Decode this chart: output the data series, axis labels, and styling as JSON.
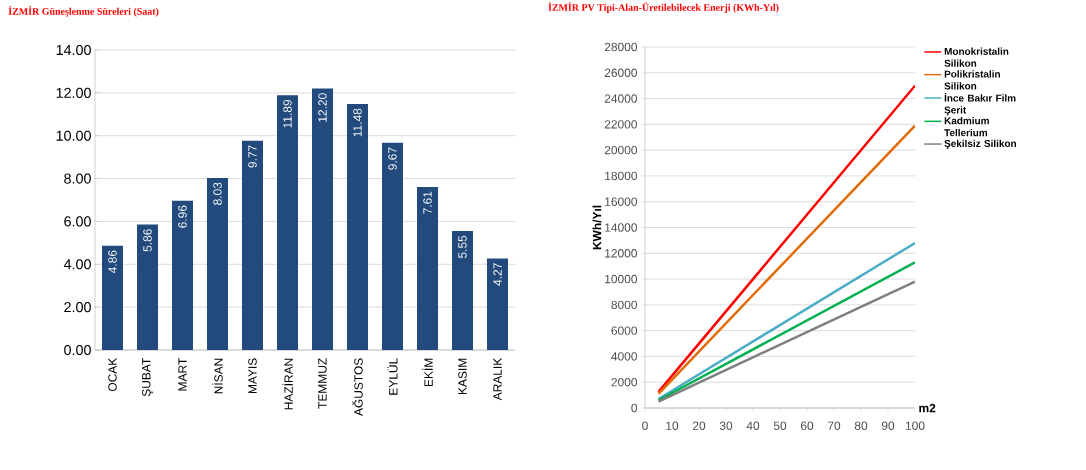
{
  "chart_data": [
    {
      "type": "bar",
      "title": "İZMİR Güneşlenme Süreleri (Saat)",
      "categories": [
        "OCAK",
        "ŞUBAT",
        "MART",
        "NİSAN",
        "MAYIS",
        "HAZİRAN",
        "TEMMUZ",
        "AĞUSTOS",
        "EYLÜL",
        "EKİM",
        "KASIM",
        "ARALIK"
      ],
      "values": [
        4.86,
        5.86,
        6.96,
        8.03,
        9.77,
        11.89,
        12.2,
        11.48,
        9.67,
        7.61,
        5.55,
        4.27
      ],
      "value_labels": [
        "4.86",
        "5.86",
        "6.96",
        "8.03",
        "9.77",
        "11.89",
        "12.20",
        "11.48",
        "9.67",
        "7.61",
        "5.55",
        "4.27"
      ],
      "color": "#234a7c",
      "ylim": [
        0,
        14
      ],
      "yticks": [
        {
          "value": 0,
          "label": "0.00"
        },
        {
          "value": 2,
          "label": "2.00"
        },
        {
          "value": 4,
          "label": "4.00"
        },
        {
          "value": 6,
          "label": "6.00"
        },
        {
          "value": 8,
          "label": "8.00"
        },
        {
          "value": 10,
          "label": "10.00"
        },
        {
          "value": 12,
          "label": "12.00"
        },
        {
          "value": 14,
          "label": "14.00"
        }
      ],
      "grid": "y"
    },
    {
      "type": "line",
      "title": "İZMİR PV Tipi-Alan-Üretilebilecek Enerji (KWh-Yıl)",
      "xlabel": "m2",
      "ylabel": "KWh/Yıl",
      "x": [
        5,
        100
      ],
      "series": [
        {
          "name": "Monokristalin Silikon",
          "color": "#ff0000",
          "values": [
            1250,
            25000
          ]
        },
        {
          "name": "Polikristalin Silikon",
          "color": "#e36c09",
          "values": [
            1100,
            21900
          ]
        },
        {
          "name": "İnce Bakır Film Şerit",
          "color": "#4bacc6",
          "values": [
            700,
            12800
          ]
        },
        {
          "name": "Kadmium Tellerium",
          "color": "#00b050",
          "values": [
            600,
            11300
          ]
        },
        {
          "name": "Şekilsiz Silikon",
          "color": "#808080",
          "values": [
            500,
            9800
          ]
        }
      ],
      "xlim": [
        0,
        100
      ],
      "xticks": [
        0,
        10,
        20,
        30,
        40,
        50,
        60,
        70,
        80,
        90,
        100
      ],
      "ylim": [
        0,
        28000
      ],
      "yticks": [
        0,
        2000,
        4000,
        6000,
        8000,
        10000,
        12000,
        14000,
        16000,
        18000,
        20000,
        22000,
        24000,
        26000,
        28000
      ],
      "grid": "y",
      "legend": "right",
      "marker": "none",
      "line_style": "solid"
    }
  ]
}
